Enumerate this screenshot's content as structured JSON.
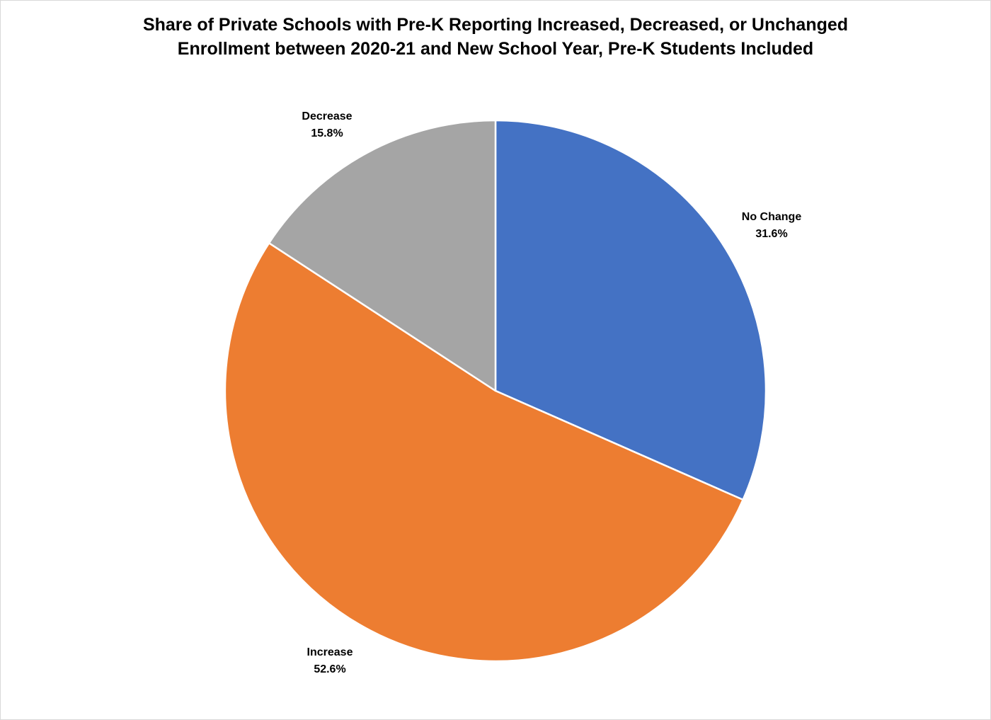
{
  "chart_data": {
    "type": "pie",
    "title": "Share of Private Schools with Pre-K Reporting Increased, Decreased, or Unchanged Enrollment between 2020-21 and New School Year, Pre-K Students Included",
    "title_lines": [
      "Share of Private Schools with Pre-K Reporting Increased, Decreased, or Unchanged",
      "Enrollment between 2020-21 and New School Year, Pre-K Students Included"
    ],
    "slices": [
      {
        "label": "No Change",
        "value": 31.6,
        "value_label": "31.6%",
        "color": "#4472C4",
        "label_pos": "upper-right"
      },
      {
        "label": "Increase",
        "value": 52.6,
        "value_label": "52.6%",
        "color": "#ED7D31",
        "label_pos": "lower-left"
      },
      {
        "label": "Decrease",
        "value": 15.8,
        "value_label": "15.8%",
        "color": "#A5A5A5",
        "label_pos": "upper-left"
      }
    ],
    "start_angle": "12 o'clock",
    "direction": "clockwise",
    "legend": "none",
    "slice_border_color": "#FFFFFF"
  }
}
